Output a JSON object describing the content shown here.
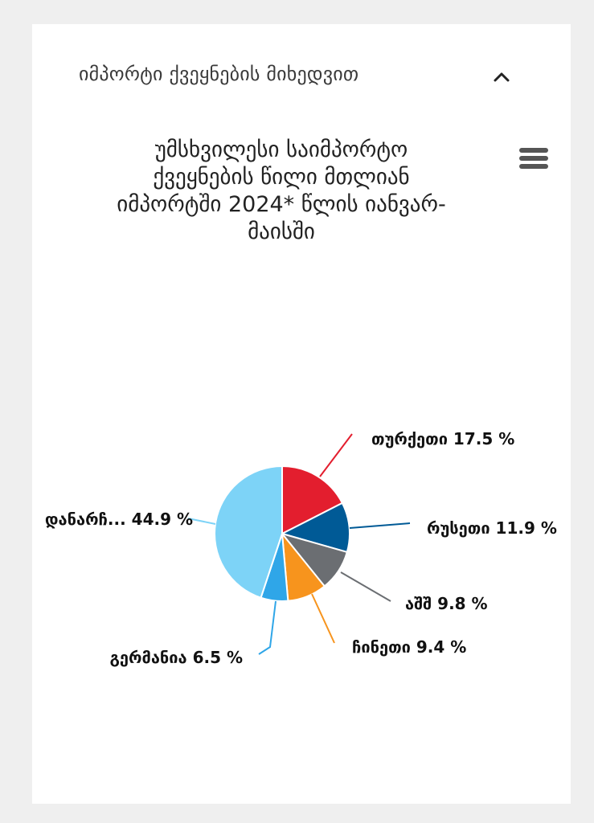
{
  "accordion": {
    "label": "იმპორტი ქვეყნების მიხედვით"
  },
  "chart_data": {
    "type": "pie",
    "title_lines": [
      "უმსხვილესი საიმპორტო",
      "ქვეყნების წილი მთლიან",
      "იმპორტში 2024* წლის იანვარ-",
      "მაისში"
    ],
    "unit": "%",
    "slices": [
      {
        "name": "თურქეთი",
        "value": 17.5,
        "label": "თურქეთი 17.5 %",
        "color": "#e31e2e"
      },
      {
        "name": "რუსეთი",
        "value": 11.9,
        "label": "რუსეთი 11.9 %",
        "color": "#005a96"
      },
      {
        "name": "აშშ",
        "value": 9.8,
        "label": "აშშ 9.8 %",
        "color": "#6b6e72"
      },
      {
        "name": "ჩინეთი",
        "value": 9.4,
        "label": "ჩინეთი 9.4 %",
        "color": "#f7941d"
      },
      {
        "name": "გერმანია",
        "value": 6.5,
        "label": "გერმანია 6.5 %",
        "color": "#2fa6e8"
      },
      {
        "name": "დანარჩ...",
        "value": 44.9,
        "label": "დანარჩ... 44.9 %",
        "color": "#7dd3f7"
      }
    ]
  }
}
